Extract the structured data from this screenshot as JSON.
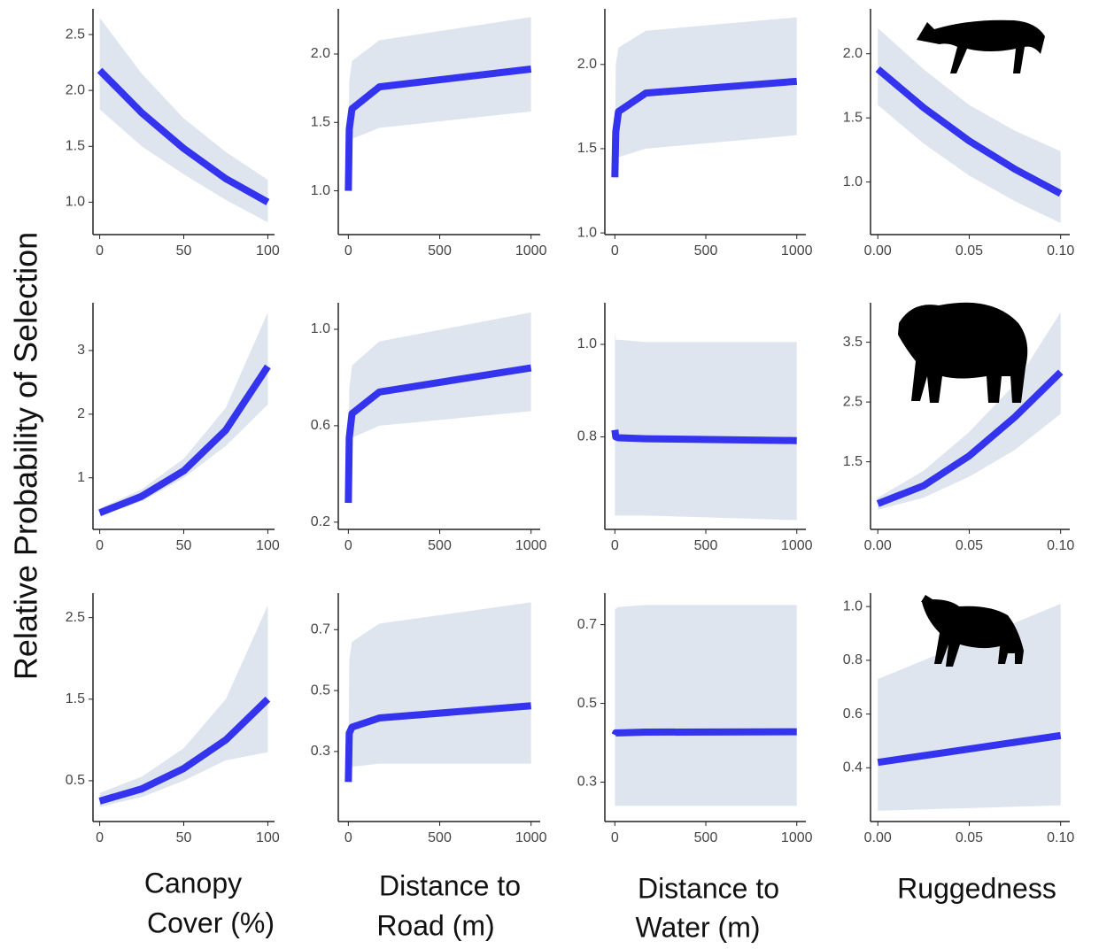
{
  "y_label": "Relative Probability of Selection",
  "column_labels": [
    [
      "Canopy",
      "Cover (%)"
    ],
    [
      "Distance to",
      "Road (m)"
    ],
    [
      "Distance to",
      "Water (m)"
    ],
    [
      "Ruggedness"
    ]
  ],
  "chart_data": [
    {
      "type": "line",
      "x": [
        0,
        25,
        50,
        75,
        100
      ],
      "values": [
        2.18,
        1.8,
        1.48,
        1.21,
        1.0
      ],
      "lower": [
        1.83,
        1.5,
        1.25,
        1.02,
        0.82
      ],
      "upper": [
        2.65,
        2.15,
        1.75,
        1.45,
        1.2
      ],
      "color": "#3434ee",
      "band_color": "#dfe5ef",
      "xlim": [
        -4,
        104
      ],
      "xticks": [
        0,
        50,
        100
      ],
      "ylim": [
        0.71,
        2.73
      ],
      "yticks": [
        {
          "value": 1,
          "label": "1.0"
        },
        1.5,
        {
          "value": 2,
          "label": "2.0"
        },
        2.5
      ]
    },
    {
      "type": "line",
      "x": [
        0,
        5,
        20,
        170,
        1000
      ],
      "values": [
        1.0,
        1.45,
        1.6,
        1.76,
        1.89
      ],
      "lower": [
        1.0,
        1.3,
        1.38,
        1.46,
        1.58
      ],
      "upper": [
        1.05,
        1.8,
        1.95,
        2.1,
        2.27
      ],
      "color": "#3434ee",
      "band_color": "#dfe5ef",
      "xlim": [
        -55,
        1050
      ],
      "xticks": [
        0,
        500,
        1000
      ],
      "ylim": [
        0.68,
        2.33
      ],
      "yticks": [
        {
          "value": 1,
          "label": "1.0"
        },
        1.5,
        {
          "value": 2,
          "label": "2.0"
        }
      ]
    },
    {
      "type": "line",
      "x": [
        0,
        5,
        20,
        170,
        1000
      ],
      "values": [
        1.33,
        1.6,
        1.72,
        1.83,
        1.9
      ],
      "lower": [
        1.33,
        1.42,
        1.45,
        1.5,
        1.58
      ],
      "upper": [
        1.35,
        2.0,
        2.1,
        2.2,
        2.28
      ],
      "color": "#3434ee",
      "band_color": "#dfe5ef",
      "xlim": [
        -55,
        1050
      ],
      "xticks": [
        0,
        500,
        1000
      ],
      "ylim": [
        0.99,
        2.33
      ],
      "yticks": [
        {
          "value": 1,
          "label": "1.0"
        },
        1.5,
        {
          "value": 2,
          "label": "2.0"
        }
      ]
    },
    {
      "type": "line",
      "x": [
        0,
        0.025,
        0.05,
        0.075,
        0.1
      ],
      "values": [
        1.88,
        1.58,
        1.32,
        1.1,
        0.91
      ],
      "lower": [
        1.6,
        1.3,
        1.05,
        0.85,
        0.68
      ],
      "upper": [
        2.2,
        1.88,
        1.6,
        1.4,
        1.24
      ],
      "color": "#3434ee",
      "band_color": "#dfe5ef",
      "xlim": [
        -0.004,
        0.105
      ],
      "xticks": [
        {
          "value": 0,
          "label": "0.00"
        },
        0.05,
        {
          "value": 0.1,
          "label": "0.10"
        }
      ],
      "ylim": [
        0.59,
        2.35
      ],
      "yticks": [
        {
          "value": 1,
          "label": "1.0"
        },
        1.5,
        {
          "value": 2,
          "label": "2.0"
        }
      ]
    },
    {
      "type": "line",
      "x": [
        0,
        25,
        50,
        75,
        100
      ],
      "values": [
        0.45,
        0.71,
        1.11,
        1.75,
        2.75
      ],
      "lower": [
        0.4,
        0.63,
        1.0,
        1.5,
        2.15
      ],
      "upper": [
        0.52,
        0.82,
        1.3,
        2.1,
        3.6
      ],
      "color": "#3434ee",
      "band_color": "#dfe5ef",
      "xlim": [
        -4,
        104
      ],
      "xticks": [
        0,
        50,
        100
      ],
      "ylim": [
        0.19,
        3.75
      ],
      "yticks": [
        1,
        2,
        3
      ]
    },
    {
      "type": "line",
      "x": [
        0,
        5,
        20,
        170,
        1000
      ],
      "values": [
        0.28,
        0.55,
        0.65,
        0.74,
        0.84
      ],
      "lower": [
        0.28,
        0.5,
        0.55,
        0.6,
        0.66
      ],
      "upper": [
        0.3,
        0.75,
        0.85,
        0.95,
        1.07
      ],
      "color": "#3434ee",
      "band_color": "#dfe5ef",
      "xlim": [
        -55,
        1050
      ],
      "xticks": [
        0,
        500,
        1000
      ],
      "ylim": [
        0.17,
        1.11
      ],
      "yticks": [
        0.2,
        0.6,
        {
          "value": 1,
          "label": "1.0"
        }
      ]
    },
    {
      "type": "line",
      "x": [
        0,
        5,
        20,
        170,
        1000
      ],
      "values": [
        0.815,
        0.8,
        0.798,
        0.796,
        0.792
      ],
      "lower": [
        0.63,
        0.63,
        0.63,
        0.63,
        0.62
      ],
      "upper": [
        1.03,
        1.01,
        1.01,
        1.005,
        1.005
      ],
      "color": "#3434ee",
      "band_color": "#dfe5ef",
      "xlim": [
        -55,
        1050
      ],
      "xticks": [
        0,
        500,
        1000
      ],
      "ylim": [
        0.6,
        1.09
      ],
      "yticks": [
        0.8,
        {
          "value": 1,
          "label": "1.0"
        }
      ]
    },
    {
      "type": "line",
      "x": [
        0,
        0.025,
        0.05,
        0.075,
        0.1
      ],
      "values": [
        0.8,
        1.1,
        1.6,
        2.25,
        3.0
      ],
      "lower": [
        0.7,
        0.9,
        1.25,
        1.7,
        2.3
      ],
      "upper": [
        0.9,
        1.35,
        2.0,
        2.8,
        4.0
      ],
      "color": "#3434ee",
      "band_color": "#dfe5ef",
      "xlim": [
        -0.004,
        0.105
      ],
      "xticks": [
        {
          "value": 0,
          "label": "0.00"
        },
        0.05,
        {
          "value": 0.1,
          "label": "0.10"
        }
      ],
      "ylim": [
        0.37,
        4.16
      ],
      "yticks": [
        1.5,
        2.5,
        3.5
      ]
    },
    {
      "type": "line",
      "x": [
        0,
        25,
        50,
        75,
        100
      ],
      "values": [
        0.25,
        0.4,
        0.65,
        1.0,
        1.5
      ],
      "lower": [
        0.18,
        0.3,
        0.5,
        0.75,
        0.85
      ],
      "upper": [
        0.35,
        0.55,
        0.9,
        1.5,
        2.65
      ],
      "color": "#3434ee",
      "band_color": "#dfe5ef",
      "xlim": [
        -4,
        104
      ],
      "xticks": [
        0,
        50,
        100
      ],
      "ylim": [
        0.0,
        2.8
      ],
      "yticks": [
        0.5,
        1.5,
        2.5
      ]
    },
    {
      "type": "line",
      "x": [
        0,
        5,
        20,
        170,
        1000
      ],
      "values": [
        0.2,
        0.36,
        0.38,
        0.41,
        0.45
      ],
      "lower": [
        0.2,
        0.25,
        0.25,
        0.26,
        0.26
      ],
      "upper": [
        0.21,
        0.6,
        0.66,
        0.72,
        0.79
      ],
      "color": "#3434ee",
      "band_color": "#dfe5ef",
      "xlim": [
        -55,
        1050
      ],
      "xticks": [
        0,
        500,
        1000
      ],
      "ylim": [
        0.07,
        0.82
      ],
      "yticks": [
        0.3,
        0.5,
        0.7
      ]
    },
    {
      "type": "line",
      "x": [
        0,
        5,
        20,
        170,
        1000
      ],
      "values": [
        0.42,
        0.425,
        0.425,
        0.427,
        0.428
      ],
      "lower": [
        0.24,
        0.24,
        0.24,
        0.24,
        0.24
      ],
      "upper": [
        0.74,
        0.74,
        0.745,
        0.75,
        0.75
      ],
      "color": "#3434ee",
      "band_color": "#dfe5ef",
      "xlim": [
        -55,
        1050
      ],
      "xticks": [
        0,
        500,
        1000
      ],
      "ylim": [
        0.2,
        0.78
      ],
      "yticks": [
        0.3,
        0.5,
        0.7
      ]
    },
    {
      "type": "line",
      "x": [
        0,
        0.05,
        0.1
      ],
      "values": [
        0.42,
        0.47,
        0.52
      ],
      "lower": [
        0.24,
        0.25,
        0.26
      ],
      "upper": [
        0.73,
        0.87,
        1.01
      ],
      "color": "#3434ee",
      "band_color": "#dfe5ef",
      "xlim": [
        -0.004,
        0.105
      ],
      "xticks": [
        {
          "value": 0,
          "label": "0.00"
        },
        0.05,
        {
          "value": 0.1,
          "label": "0.10"
        }
      ],
      "ylim": [
        0.2,
        1.05
      ],
      "yticks": [
        0.4,
        0.6,
        0.8,
        {
          "value": 1,
          "label": "1.0"
        }
      ]
    }
  ]
}
